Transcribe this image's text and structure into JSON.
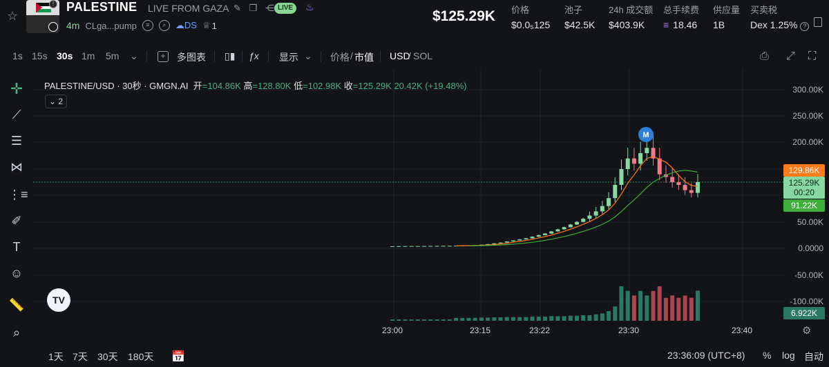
{
  "header": {
    "token_name": "PALESTINE",
    "token_subtitle": "LIVE FROM GAZA",
    "live_badge": "LIVE",
    "age": "4m",
    "address": "CLga...pump",
    "ds_label": "DS",
    "holders_icon_count": "1",
    "market_cap": "$125.29K",
    "stats": [
      {
        "label": "价格",
        "value": "$0.0₅125"
      },
      {
        "label": "池子",
        "value": "$42.5K"
      },
      {
        "label": "24h 成交额",
        "value": "$403.9K"
      },
      {
        "label": "总手续费",
        "value": "18.46"
      },
      {
        "label": "供应量",
        "value": "1B"
      },
      {
        "label": "买卖税",
        "value": "Dex 1.25%"
      }
    ]
  },
  "toolbar": {
    "intervals": [
      "1s",
      "15s",
      "30s",
      "1m",
      "5m"
    ],
    "active_interval": "30s",
    "multi_chart": "多图表",
    "display": "显示",
    "price_label": "价格",
    "mcap_label": "市值",
    "usd_label": "USD",
    "sol_label": "SOL"
  },
  "legend": {
    "symbol": "PALESTINE/USD · 30秒 · GMGN.AI",
    "open_label": "开",
    "open": "=104.86K",
    "high_label": "高",
    "high": "=128.80K",
    "low_label": "低",
    "low": "=102.98K",
    "close_label": "收",
    "close": "=125.29K",
    "change": "20.42K (+19.48%)",
    "indicator_count": "2"
  },
  "price_axis": [
    "300.00K",
    "250.00K",
    "200.00K",
    "150.00K",
    "100.00K",
    "50.00K",
    "0.0000",
    "-50.00K",
    "-100.00K"
  ],
  "price_tags": {
    "ma_fast": "129.86K",
    "current": "125.29K",
    "countdown": "00:20",
    "ma_slow": "91.22K",
    "volume": "6.922K"
  },
  "time_axis": [
    "23:00",
    "23:15",
    "23:22",
    "23:30",
    "23:40"
  ],
  "bottom": {
    "ranges": [
      "1天",
      "7天",
      "30天",
      "180天"
    ],
    "clock": "23:36:09 (UTC+8)",
    "percent": "%",
    "log": "log",
    "auto": "自动"
  },
  "marker": "M",
  "colors": {
    "up": "#88d8a4",
    "down": "#f07a8b",
    "ma_fast": "#ff7a1a",
    "ma_slow": "#3fae3a",
    "live_bg": "#88d693"
  },
  "chart_data": {
    "type": "candlestick",
    "unit": "market cap (USD)",
    "x_ticks": [
      "23:00",
      "23:15",
      "23:22",
      "23:30",
      "23:40"
    ],
    "ylim": [
      -120000,
      310000
    ],
    "candles_close": [
      4000,
      4100,
      4200,
      4300,
      4300,
      4400,
      4500,
      4600,
      4700,
      4800,
      5000,
      5200,
      5500,
      6000,
      7000,
      8000,
      9500,
      11000,
      13000,
      15000,
      17000,
      19000,
      22000,
      25000,
      28000,
      32000,
      36000,
      40000,
      45000,
      50000,
      56000,
      62000,
      70000,
      80000,
      95000,
      120000,
      150000,
      170000,
      160000,
      180000,
      190000,
      170000,
      140000,
      135000,
      125000,
      120000,
      110000,
      104860,
      125290
    ],
    "last": {
      "open": 104860,
      "high": 128800,
      "low": 102980,
      "close": 125290
    }
  }
}
